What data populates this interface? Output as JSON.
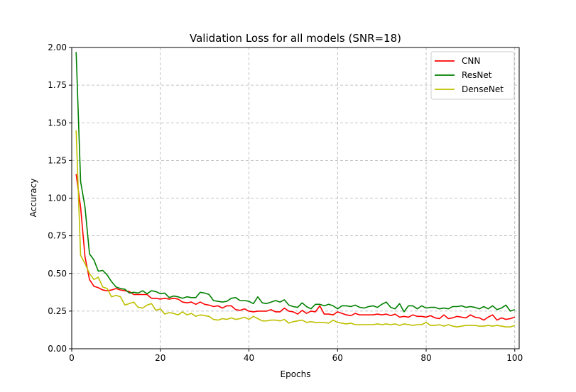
{
  "chart_data": {
    "type": "line",
    "title": "Validation Loss for all models (SNR=18)",
    "xlabel": "Epochs",
    "ylabel": "Accuracy",
    "xlim": [
      0,
      101
    ],
    "ylim": [
      0,
      2.0
    ],
    "xticks": [
      0,
      20,
      40,
      60,
      80,
      100
    ],
    "xtick_labels": [
      "0",
      "20",
      "40",
      "60",
      "80",
      "100"
    ],
    "yticks": [
      0,
      0.25,
      0.5,
      0.75,
      1.0,
      1.25,
      1.5,
      1.75,
      2.0
    ],
    "ytick_labels": [
      "0.00",
      "0.25",
      "0.50",
      "0.75",
      "1.00",
      "1.25",
      "1.50",
      "1.75",
      "2.00"
    ],
    "grid": true,
    "legend_position": "top-right",
    "x": [
      1,
      2,
      3,
      4,
      5,
      6,
      7,
      8,
      9,
      10,
      11,
      12,
      13,
      14,
      15,
      16,
      17,
      18,
      19,
      20,
      21,
      22,
      23,
      24,
      25,
      26,
      27,
      28,
      29,
      30,
      31,
      32,
      33,
      34,
      35,
      36,
      37,
      38,
      39,
      40,
      41,
      42,
      43,
      44,
      45,
      46,
      47,
      48,
      49,
      50,
      51,
      52,
      53,
      54,
      55,
      56,
      57,
      58,
      59,
      60,
      61,
      62,
      63,
      64,
      65,
      66,
      67,
      68,
      69,
      70,
      71,
      72,
      73,
      74,
      75,
      76,
      77,
      78,
      79,
      80,
      81,
      82,
      83,
      84,
      85,
      86,
      87,
      88,
      89,
      90,
      91,
      92,
      93,
      94,
      95,
      96,
      97,
      98,
      99,
      100
    ],
    "series": [
      {
        "name": "CNN",
        "color": "#ff0000",
        "values": [
          1.16,
          0.94,
          0.61,
          0.46,
          0.415,
          0.405,
          0.39,
          0.385,
          0.39,
          0.4,
          0.39,
          0.385,
          0.38,
          0.36,
          0.36,
          0.36,
          0.36,
          0.335,
          0.335,
          0.33,
          0.335,
          0.33,
          0.335,
          0.33,
          0.31,
          0.305,
          0.31,
          0.295,
          0.31,
          0.295,
          0.29,
          0.28,
          0.285,
          0.27,
          0.285,
          0.285,
          0.26,
          0.255,
          0.265,
          0.25,
          0.245,
          0.25,
          0.25,
          0.25,
          0.26,
          0.245,
          0.245,
          0.27,
          0.25,
          0.245,
          0.23,
          0.255,
          0.235,
          0.25,
          0.245,
          0.285,
          0.23,
          0.23,
          0.225,
          0.245,
          0.235,
          0.225,
          0.22,
          0.235,
          0.225,
          0.225,
          0.225,
          0.225,
          0.23,
          0.225,
          0.23,
          0.22,
          0.23,
          0.21,
          0.215,
          0.21,
          0.225,
          0.215,
          0.215,
          0.21,
          0.22,
          0.205,
          0.2,
          0.225,
          0.2,
          0.205,
          0.215,
          0.21,
          0.205,
          0.225,
          0.21,
          0.205,
          0.19,
          0.21,
          0.225,
          0.19,
          0.205,
          0.195,
          0.2,
          0.21
        ]
      },
      {
        "name": "ResNet",
        "color": "#008000",
        "values": [
          1.97,
          1.11,
          0.94,
          0.63,
          0.59,
          0.515,
          0.52,
          0.49,
          0.445,
          0.41,
          0.4,
          0.395,
          0.37,
          0.375,
          0.37,
          0.385,
          0.365,
          0.385,
          0.38,
          0.365,
          0.37,
          0.34,
          0.35,
          0.345,
          0.335,
          0.345,
          0.34,
          0.34,
          0.375,
          0.37,
          0.36,
          0.32,
          0.315,
          0.31,
          0.315,
          0.335,
          0.34,
          0.32,
          0.32,
          0.315,
          0.3,
          0.345,
          0.305,
          0.3,
          0.31,
          0.32,
          0.31,
          0.325,
          0.29,
          0.28,
          0.275,
          0.305,
          0.28,
          0.265,
          0.295,
          0.295,
          0.285,
          0.295,
          0.285,
          0.265,
          0.285,
          0.285,
          0.28,
          0.29,
          0.275,
          0.27,
          0.28,
          0.285,
          0.275,
          0.295,
          0.31,
          0.275,
          0.265,
          0.3,
          0.245,
          0.285,
          0.285,
          0.265,
          0.285,
          0.27,
          0.275,
          0.275,
          0.265,
          0.27,
          0.265,
          0.28,
          0.28,
          0.285,
          0.275,
          0.28,
          0.275,
          0.265,
          0.28,
          0.265,
          0.285,
          0.26,
          0.27,
          0.29,
          0.25,
          0.26
        ]
      },
      {
        "name": "DenseNet",
        "color": "#bfbf00",
        "values": [
          1.45,
          0.62,
          0.565,
          0.5,
          0.46,
          0.475,
          0.41,
          0.4,
          0.345,
          0.355,
          0.345,
          0.29,
          0.3,
          0.31,
          0.275,
          0.27,
          0.29,
          0.3,
          0.255,
          0.265,
          0.23,
          0.24,
          0.235,
          0.225,
          0.245,
          0.225,
          0.235,
          0.215,
          0.225,
          0.22,
          0.215,
          0.195,
          0.19,
          0.2,
          0.195,
          0.205,
          0.195,
          0.2,
          0.21,
          0.195,
          0.215,
          0.2,
          0.185,
          0.185,
          0.19,
          0.19,
          0.185,
          0.195,
          0.17,
          0.18,
          0.185,
          0.19,
          0.175,
          0.18,
          0.175,
          0.175,
          0.175,
          0.17,
          0.19,
          0.175,
          0.17,
          0.165,
          0.17,
          0.16,
          0.16,
          0.16,
          0.16,
          0.16,
          0.165,
          0.16,
          0.165,
          0.16,
          0.165,
          0.155,
          0.165,
          0.16,
          0.155,
          0.16,
          0.16,
          0.175,
          0.155,
          0.155,
          0.16,
          0.15,
          0.16,
          0.15,
          0.145,
          0.15,
          0.155,
          0.155,
          0.155,
          0.15,
          0.15,
          0.155,
          0.15,
          0.155,
          0.15,
          0.145,
          0.145,
          0.155
        ]
      }
    ]
  }
}
